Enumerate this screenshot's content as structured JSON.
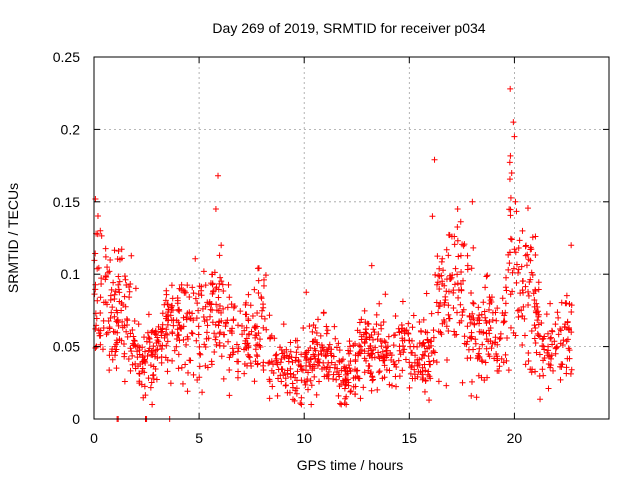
{
  "chart_data": {
    "type": "scatter",
    "title": "Day 269 of 2019, SRMTID for receiver p034",
    "xlabel": "GPS time / hours",
    "ylabel": "SRMTID / TECUs",
    "xlim": [
      0,
      24.5
    ],
    "ylim": [
      0,
      0.25
    ],
    "grid": true,
    "marker": "plus",
    "color": "#ff0000",
    "x_ticks": [
      {
        "value": 0,
        "label": "0"
      },
      {
        "value": 5,
        "label": "5"
      },
      {
        "value": 10,
        "label": "10"
      },
      {
        "value": 15,
        "label": "15"
      },
      {
        "value": 20,
        "label": "20"
      }
    ],
    "y_ticks": [
      {
        "value": 0,
        "label": "0"
      },
      {
        "value": 0.05,
        "label": "0.05"
      },
      {
        "value": 0.1,
        "label": "0.1"
      },
      {
        "value": 0.15,
        "label": "0.15"
      },
      {
        "value": 0.2,
        "label": "0.2"
      },
      {
        "value": 0.25,
        "label": "0.25"
      }
    ],
    "level_profile": [
      {
        "x": 0.0,
        "y": 0.085
      },
      {
        "x": 0.5,
        "y": 0.085
      },
      {
        "x": 1.0,
        "y": 0.065
      },
      {
        "x": 1.3,
        "y": 0.09
      },
      {
        "x": 1.8,
        "y": 0.06
      },
      {
        "x": 2.2,
        "y": 0.04
      },
      {
        "x": 2.8,
        "y": 0.045
      },
      {
        "x": 3.5,
        "y": 0.06
      },
      {
        "x": 4.5,
        "y": 0.065
      },
      {
        "x": 5.0,
        "y": 0.055
      },
      {
        "x": 5.5,
        "y": 0.07
      },
      {
        "x": 6.0,
        "y": 0.09
      },
      {
        "x": 6.5,
        "y": 0.05
      },
      {
        "x": 7.5,
        "y": 0.055
      },
      {
        "x": 8.0,
        "y": 0.065
      },
      {
        "x": 8.5,
        "y": 0.045
      },
      {
        "x": 9.0,
        "y": 0.035
      },
      {
        "x": 10.0,
        "y": 0.04
      },
      {
        "x": 11.0,
        "y": 0.045
      },
      {
        "x": 12.0,
        "y": 0.03
      },
      {
        "x": 13.0,
        "y": 0.05
      },
      {
        "x": 14.0,
        "y": 0.045
      },
      {
        "x": 15.0,
        "y": 0.05
      },
      {
        "x": 16.0,
        "y": 0.04
      },
      {
        "x": 16.3,
        "y": 0.08
      },
      {
        "x": 17.0,
        "y": 0.09
      },
      {
        "x": 17.5,
        "y": 0.08
      },
      {
        "x": 18.0,
        "y": 0.07
      },
      {
        "x": 18.5,
        "y": 0.06
      },
      {
        "x": 19.5,
        "y": 0.055
      },
      {
        "x": 19.9,
        "y": 0.13
      },
      {
        "x": 20.3,
        "y": 0.08
      },
      {
        "x": 20.8,
        "y": 0.09
      },
      {
        "x": 21.2,
        "y": 0.055
      },
      {
        "x": 22.0,
        "y": 0.045
      },
      {
        "x": 22.7,
        "y": 0.06
      }
    ],
    "peaks": [
      {
        "x": 0.1,
        "y": 0.128
      },
      {
        "x": 0.3,
        "y": 0.13
      },
      {
        "x": 5.9,
        "y": 0.168
      },
      {
        "x": 5.8,
        "y": 0.145
      },
      {
        "x": 6.05,
        "y": 0.12
      },
      {
        "x": 7.8,
        "y": 0.104
      },
      {
        "x": 16.2,
        "y": 0.179
      },
      {
        "x": 16.1,
        "y": 0.14
      },
      {
        "x": 17.3,
        "y": 0.145
      },
      {
        "x": 18.0,
        "y": 0.15
      },
      {
        "x": 19.8,
        "y": 0.228
      },
      {
        "x": 19.95,
        "y": 0.205
      },
      {
        "x": 20.0,
        "y": 0.195
      },
      {
        "x": 20.05,
        "y": 0.15
      },
      {
        "x": 21.0,
        "y": 0.126
      },
      {
        "x": 22.7,
        "y": 0.12
      }
    ],
    "zero_points": [
      {
        "x": 1.1,
        "y": 0
      },
      {
        "x": 1.15,
        "y": 0
      },
      {
        "x": 2.45,
        "y": 0
      },
      {
        "x": 2.5,
        "y": 0
      },
      {
        "x": 3.6,
        "y": 0
      }
    ],
    "gaps_hours": [
      [
        3.55,
        3.65
      ]
    ],
    "data_extent": [
      0,
      22.75
    ],
    "generated_point_count": 1400
  }
}
